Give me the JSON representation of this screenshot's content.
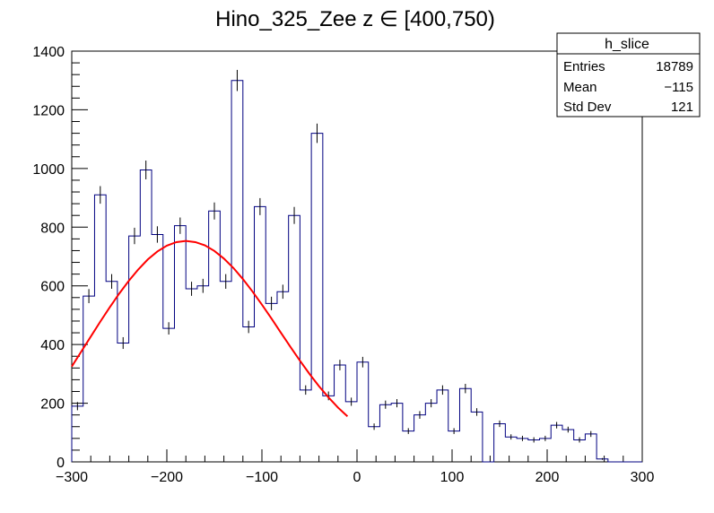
{
  "chart_data": {
    "type": "bar",
    "title": "Hino_325_Zee z  ∈ [400,750)",
    "xlabel": "",
    "ylabel": "",
    "xlim": [
      -300,
      300
    ],
    "ylim": [
      0,
      1400
    ],
    "x_ticks": [
      -300,
      -200,
      -100,
      0,
      100,
      200,
      300
    ],
    "y_ticks": [
      0,
      200,
      400,
      600,
      800,
      1000,
      1200,
      1400
    ],
    "x_tick_labels": [
      "−300",
      "−200",
      "−100",
      "0",
      "100",
      "200",
      "300"
    ],
    "y_tick_labels": [
      "0",
      "200",
      "400",
      "600",
      "800",
      "1000",
      "1200",
      "1400"
    ],
    "bin_width": 12,
    "series": [
      {
        "kind": "histogram",
        "color": "#000080",
        "bin_low_edges": [
          -300,
          -288,
          -276,
          -264,
          -252,
          -240,
          -228,
          -216,
          -204,
          -192,
          -180,
          -168,
          -156,
          -144,
          -132,
          -120,
          -108,
          -96,
          -84,
          -72,
          -60,
          -48,
          -36,
          -24,
          -12,
          0,
          12,
          24,
          36,
          48,
          60,
          72,
          84,
          96,
          108,
          120,
          132,
          144,
          156,
          168,
          180,
          192,
          204,
          216,
          228,
          240,
          252,
          264,
          276,
          288
        ],
        "values": [
          190,
          565,
          910,
          615,
          405,
          770,
          995,
          775,
          455,
          805,
          590,
          600,
          855,
          615,
          1300,
          460,
          870,
          540,
          580,
          840,
          245,
          1120,
          225,
          330,
          205,
          340,
          120,
          195,
          200,
          105,
          160,
          200,
          245,
          105,
          250,
          170,
          0,
          130,
          85,
          80,
          75,
          80,
          125,
          110,
          75,
          95,
          10,
          0,
          0,
          0
        ],
        "errors": [
          14,
          24,
          30,
          25,
          20,
          28,
          32,
          28,
          21,
          28,
          24,
          24,
          29,
          25,
          36,
          21,
          29,
          23,
          24,
          29,
          16,
          33,
          15,
          18,
          14,
          18,
          11,
          14,
          14,
          10,
          13,
          14,
          16,
          10,
          16,
          13,
          0,
          11,
          9,
          9,
          9,
          9,
          11,
          10,
          9,
          10,
          3,
          0,
          0,
          0
        ]
      },
      {
        "kind": "fit_line",
        "color": "#ff0000",
        "x": [
          -300,
          -290,
          -280,
          -270,
          -260,
          -250,
          -240,
          -230,
          -220,
          -210,
          -200,
          -190,
          -180,
          -170,
          -160,
          -150,
          -140,
          -130,
          -120,
          -110,
          -100,
          -90,
          -80,
          -70,
          -60,
          -50,
          -40,
          -30,
          -20,
          -10
        ],
        "y": [
          325,
          376,
          427,
          478,
          527,
          574,
          617,
          656,
          690,
          717,
          737,
          749,
          753,
          749,
          738,
          719,
          693,
          661,
          623,
          581,
          536,
          489,
          440,
          392,
          345,
          300,
          258,
          220,
          185,
          155
        ]
      }
    ],
    "legend": {
      "placement": "top-right",
      "title": "h_slice",
      "rows": [
        {
          "label": "Entries",
          "value": "18789"
        },
        {
          "label": "Mean",
          "value": "−115"
        },
        {
          "label": "Std Dev",
          "value": "121"
        }
      ]
    }
  }
}
